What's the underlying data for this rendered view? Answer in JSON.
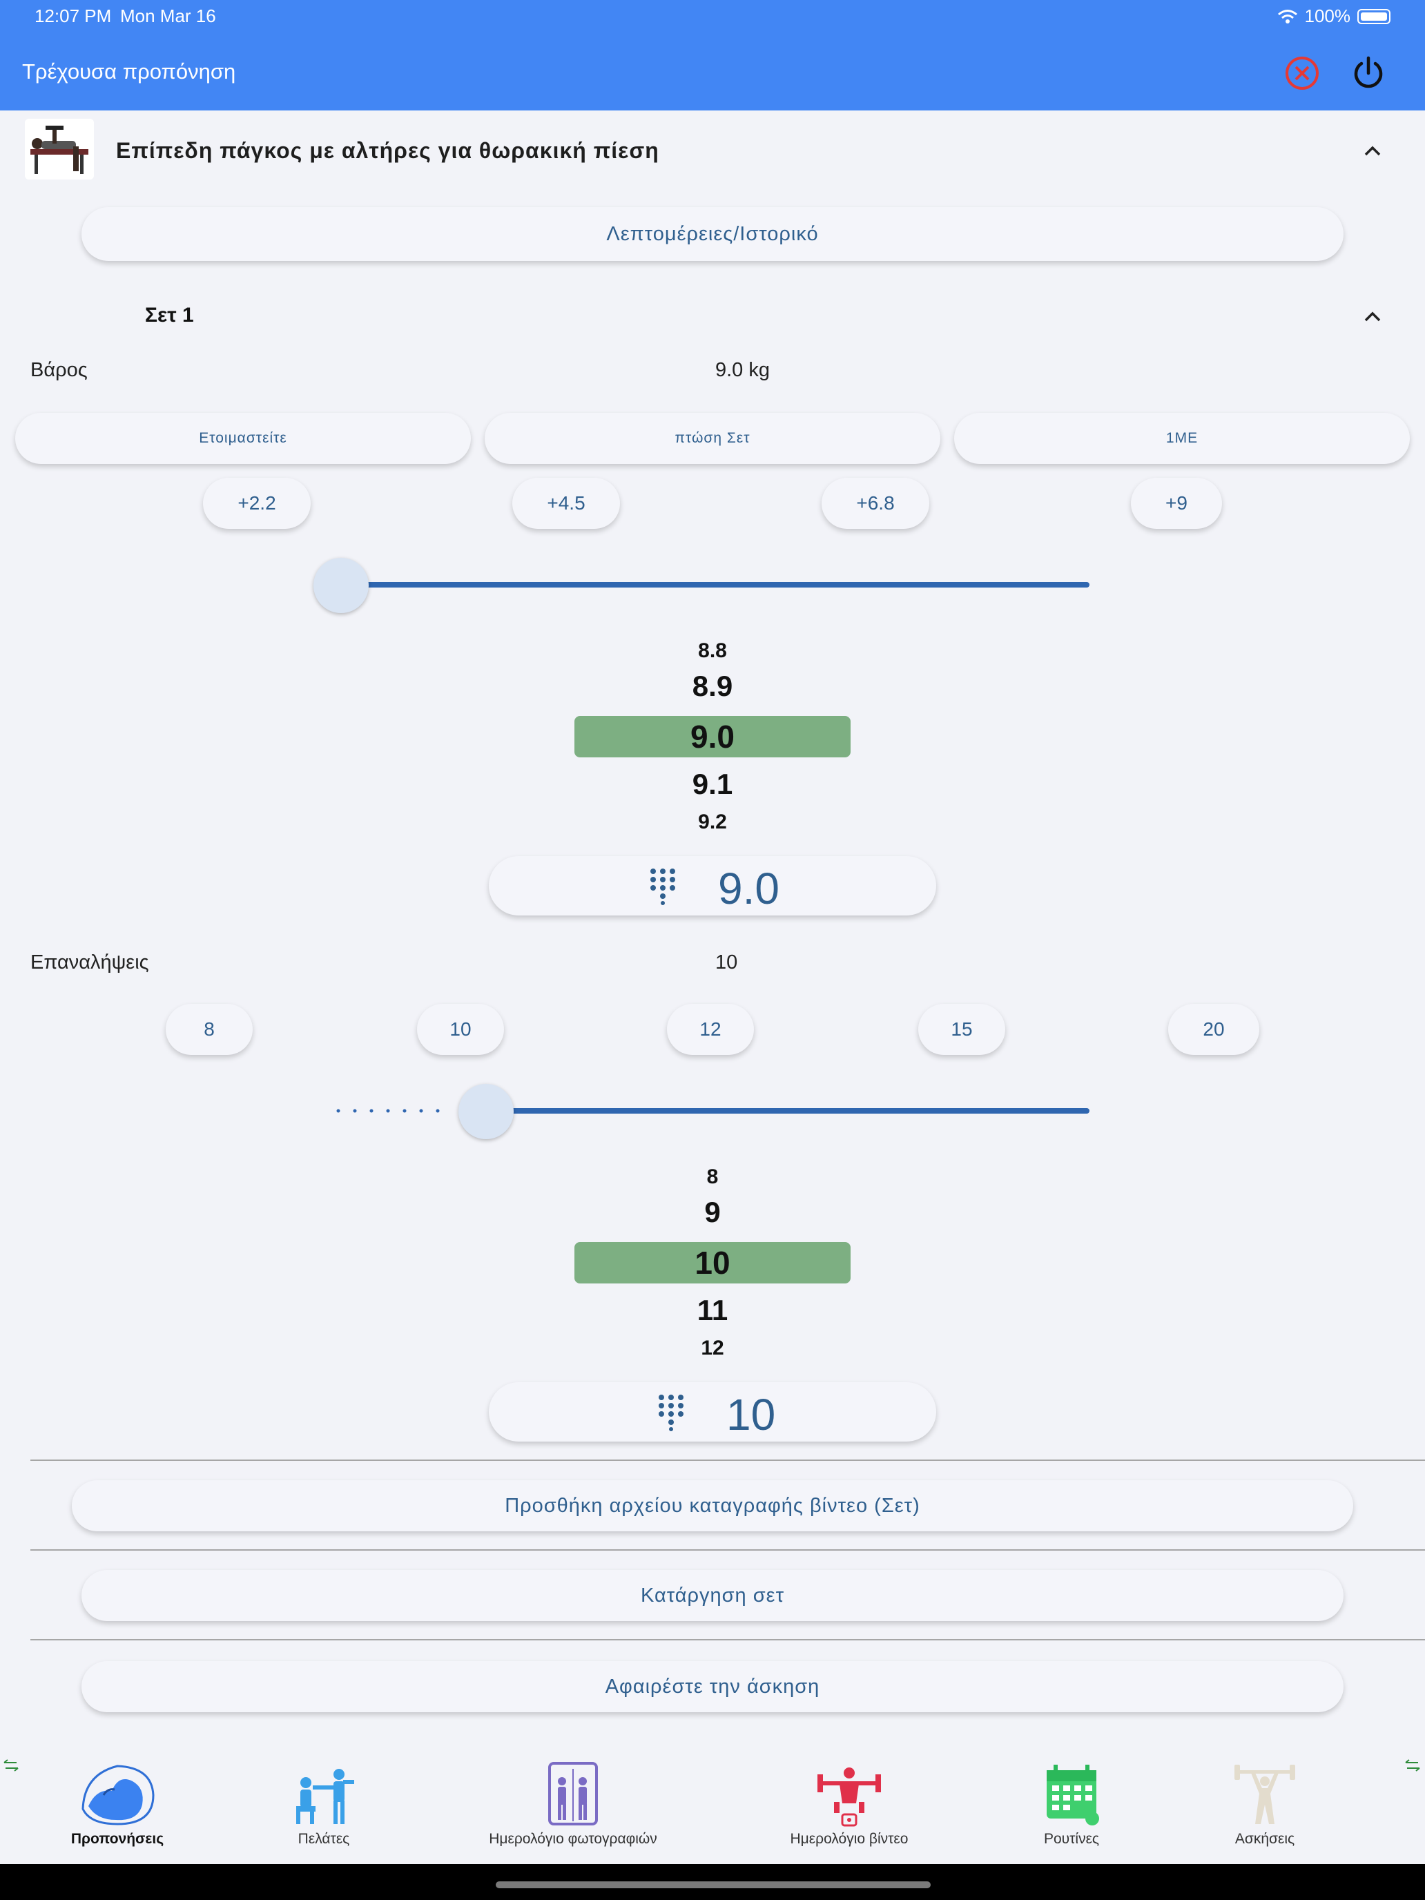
{
  "status_bar": {
    "time": "12:07 PM",
    "date": "Mon Mar 16",
    "battery": "100%"
  },
  "header": {
    "title": "Τρέχουσα προπόνηση",
    "close_icon": "close-circle-icon",
    "power_icon": "power-icon",
    "accent": "#4286f4"
  },
  "exercise": {
    "title": "Επίπεδη πάγκος με αλτήρες για θωρακική πίεση",
    "details_button": "Λεπτομέρειες/Ιστορικό"
  },
  "set": {
    "title": "Σετ 1",
    "weight": {
      "label": "Βάρος",
      "value": "9.0 kg",
      "modes": [
        "Ετοιμαστείτε",
        "πτώση Σετ",
        "1ΜΕ"
      ],
      "increments": [
        "+2.2",
        "+4.5",
        "+6.8",
        "+9"
      ],
      "picker": {
        "prev2": "8.8",
        "prev1": "8.9",
        "selected": "9.0",
        "next1": "9.1",
        "next2": "9.2"
      },
      "input_value": "9.0"
    },
    "reps": {
      "label": "Επαναλήψεις",
      "value": "10",
      "presets": [
        "8",
        "10",
        "12",
        "15",
        "20"
      ],
      "picker": {
        "prev2": "8",
        "prev1": "9",
        "selected": "10",
        "next1": "11",
        "next2": "12"
      },
      "input_value": "10"
    },
    "add_video_button": "Προσθήκη αρχείου καταγραφής βίντεο (Σετ)",
    "remove_set_button": "Κατάργηση σετ"
  },
  "remove_exercise_button": "Αφαιρέστε την άσκηση",
  "bottom_nav": {
    "items": [
      {
        "label": "Προπονήσεις",
        "icon": "muscle-arm-icon",
        "active": true
      },
      {
        "label": "Πελάτες",
        "icon": "trainer-client-icon",
        "active": false
      },
      {
        "label": "Ημερολόγιο φωτογραφιών",
        "icon": "photo-log-icon",
        "active": false
      },
      {
        "label": "Ημερολόγιο βίντεο",
        "icon": "video-log-icon",
        "active": false
      },
      {
        "label": "Ρουτίνες",
        "icon": "calendar-routines-icon",
        "active": false
      },
      {
        "label": "Ασκήσεις",
        "icon": "weightlifter-icon",
        "active": false
      }
    ]
  },
  "colors": {
    "selected_picker": "#7daf82",
    "button_text": "#2f5f8e",
    "slider": "#2f66b0"
  }
}
